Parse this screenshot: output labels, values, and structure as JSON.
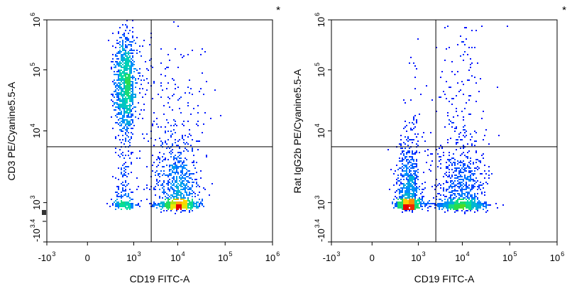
{
  "chart_data": [
    {
      "type": "scatter",
      "subtype": "flow-cytometry-density-dot-plot",
      "marker": "*",
      "xlabel": "CD19 FITC-A",
      "ylabel": "CD3 PE/Cyanine5.5-A",
      "x_scale": "biexponential",
      "y_scale": "biexponential",
      "x_ticks": [
        {
          "base": "-10",
          "exp": "3",
          "value": -1000
        },
        {
          "base": "0",
          "exp": "",
          "value": 0
        },
        {
          "base": "10",
          "exp": "3",
          "value": 1000
        },
        {
          "base": "10",
          "exp": "4",
          "value": 10000
        },
        {
          "base": "10",
          "exp": "5",
          "value": 100000
        },
        {
          "base": "10",
          "exp": "6",
          "value": 1000000
        }
      ],
      "y_ticks": [
        {
          "base": "-10",
          "exp": "3.4",
          "value": -2512
        },
        {
          "base": "10",
          "exp": "3",
          "value": 1000
        },
        {
          "base": "10",
          "exp": "4",
          "value": 10000
        },
        {
          "base": "10",
          "exp": "5",
          "value": 100000
        },
        {
          "base": "10",
          "exp": "6",
          "value": 1000000
        }
      ],
      "gate": {
        "x": 2500,
        "y": 6000
      },
      "populations": [
        {
          "name": "",
          "x_center": 300,
          "y_center": 60000,
          "x_spread": 0.35,
          "y_spread": 0.45,
          "weight": 0.4
        },
        {
          "name": "",
          "x_center": 10000,
          "y_center": 800,
          "x_spread": 0.22,
          "y_spread": 0.45,
          "weight": 0.4
        },
        {
          "name": "",
          "x_center": 250,
          "y_center": 900,
          "x_spread": 0.35,
          "y_spread": 0.4,
          "weight": 0.1
        },
        {
          "name": "",
          "x_center": 9000,
          "y_center": 6000,
          "x_spread": 0.35,
          "y_spread": 1.0,
          "weight": 0.1
        }
      ]
    },
    {
      "type": "scatter",
      "subtype": "flow-cytometry-density-dot-plot",
      "marker": "*",
      "xlabel": "CD19 FITC-A",
      "ylabel": "Rat IgG2b PE/Cyanine5.5-A",
      "x_scale": "biexponential",
      "y_scale": "biexponential",
      "x_ticks": [
        {
          "base": "-10",
          "exp": "3",
          "value": -1000
        },
        {
          "base": "0",
          "exp": "",
          "value": 0
        },
        {
          "base": "10",
          "exp": "3",
          "value": 1000
        },
        {
          "base": "10",
          "exp": "4",
          "value": 10000
        },
        {
          "base": "10",
          "exp": "5",
          "value": 100000
        },
        {
          "base": "10",
          "exp": "6",
          "value": 1000000
        }
      ],
      "y_ticks": [
        {
          "base": "-10",
          "exp": "3.4",
          "value": -2512
        },
        {
          "base": "10",
          "exp": "3",
          "value": 1000
        },
        {
          "base": "10",
          "exp": "4",
          "value": 10000
        },
        {
          "base": "10",
          "exp": "5",
          "value": 100000
        },
        {
          "base": "10",
          "exp": "6",
          "value": 1000000
        }
      ],
      "gate": {
        "x": 2500,
        "y": 6000
      },
      "populations": [
        {
          "name": "",
          "x_center": 250,
          "y_center": 850,
          "x_spread": 0.4,
          "y_spread": 0.45,
          "weight": 0.5
        },
        {
          "name": "",
          "x_center": 10000,
          "y_center": 850,
          "x_spread": 0.25,
          "y_spread": 0.45,
          "weight": 0.4
        },
        {
          "name": "",
          "x_center": 10000,
          "y_center": 15000,
          "x_spread": 0.3,
          "y_spread": 1.1,
          "weight": 0.07
        },
        {
          "name": "",
          "x_center": 1000,
          "y_center": 5000,
          "x_spread": 0.5,
          "y_spread": 0.9,
          "weight": 0.03
        }
      ]
    }
  ]
}
